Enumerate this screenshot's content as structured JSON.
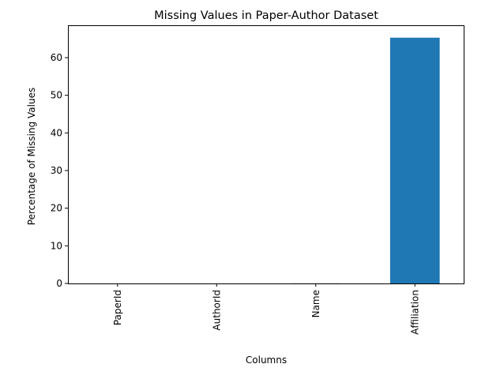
{
  "chart_data": {
    "type": "bar",
    "title": "Missing Values in Paper-Author Dataset",
    "xlabel": "Columns",
    "ylabel": "Percentage of Missing Values",
    "categories": [
      "PaperId",
      "AuthorId",
      "Name",
      "Affiliation"
    ],
    "values": [
      0,
      0,
      0.03,
      65.3
    ],
    "ylim": [
      0,
      68.6
    ],
    "yticks": [
      0,
      10,
      20,
      30,
      40,
      50,
      60
    ],
    "xtick_rotation": "vertical",
    "grid": false,
    "legend": "none",
    "bar_color": "#1f77b4"
  }
}
